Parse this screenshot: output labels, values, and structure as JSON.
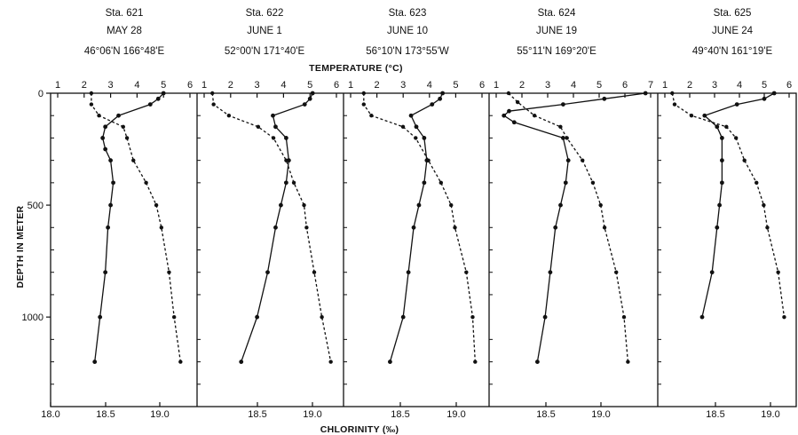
{
  "chart_data": {
    "type": "line",
    "x_axis_top_label": "TEMPERATURE (°C)",
    "x_axis_bottom_label": "CHLORINITY (‰)",
    "y_axis_label": "DEPTH IN METER",
    "y_ticks": [
      "0",
      "500",
      "1000"
    ],
    "ylim": [
      0,
      1400
    ],
    "y_inverted": true,
    "bottom_ticks": [
      "18.0",
      "18.5",
      "19.0",
      "18.5",
      "19.0",
      "18.5",
      "19.0",
      "18.5",
      "19.0",
      "18.5",
      "19.0"
    ],
    "panels": [
      {
        "station": "Sta. 621",
        "date": "MAY 28",
        "position": "46°06'N 166°48'E",
        "temp_ticks": [
          "1",
          "2",
          "3",
          "4",
          "5",
          "6"
        ],
        "temp_range": [
          1,
          6
        ],
        "chl_range": [
          18.0,
          19.15
        ],
        "temperature": [
          [
            5.0,
            0
          ],
          [
            4.8,
            25
          ],
          [
            4.5,
            50
          ],
          [
            3.3,
            100
          ],
          [
            2.8,
            150
          ],
          [
            2.7,
            200
          ],
          [
            2.8,
            250
          ],
          [
            3.0,
            300
          ],
          [
            3.1,
            400
          ],
          [
            3.0,
            500
          ],
          [
            2.9,
            600
          ],
          [
            2.8,
            800
          ],
          [
            2.6,
            1000
          ],
          [
            2.4,
            1200
          ]
        ],
        "chlorinity": [
          [
            18.32,
            0
          ],
          [
            18.32,
            50
          ],
          [
            18.38,
            100
          ],
          [
            18.57,
            150
          ],
          [
            18.6,
            200
          ],
          [
            18.65,
            300
          ],
          [
            18.75,
            400
          ],
          [
            18.83,
            500
          ],
          [
            18.87,
            600
          ],
          [
            18.93,
            800
          ],
          [
            18.97,
            1000
          ],
          [
            19.02,
            1200
          ]
        ]
      },
      {
        "station": "Sta. 622",
        "date": "JUNE 1",
        "position": "52°00'N 171°40'E",
        "temp_ticks": [
          "1",
          "2",
          "3",
          "4",
          "5",
          "6"
        ],
        "temp_range": [
          1,
          6
        ],
        "chl_range": [
          18.0,
          19.15
        ],
        "temperature": [
          [
            5.1,
            0
          ],
          [
            5.0,
            25
          ],
          [
            4.8,
            50
          ],
          [
            3.6,
            100
          ],
          [
            3.7,
            150
          ],
          [
            4.1,
            200
          ],
          [
            4.2,
            300
          ],
          [
            4.1,
            400
          ],
          [
            3.9,
            500
          ],
          [
            3.7,
            600
          ],
          [
            3.4,
            800
          ],
          [
            3.0,
            1000
          ],
          [
            2.4,
            1200
          ]
        ],
        "chlorinity": [
          [
            18.12,
            0
          ],
          [
            18.13,
            50
          ],
          [
            18.25,
            100
          ],
          [
            18.48,
            150
          ],
          [
            18.6,
            200
          ],
          [
            18.7,
            300
          ],
          [
            18.76,
            400
          ],
          [
            18.84,
            500
          ],
          [
            18.86,
            600
          ],
          [
            18.92,
            800
          ],
          [
            18.98,
            1000
          ],
          [
            19.05,
            1200
          ]
        ]
      },
      {
        "station": "Sta. 623",
        "date": "JUNE 10",
        "position": "56°10'N 173°55'W",
        "temp_ticks": [
          "1",
          "2",
          "3",
          "4",
          "5",
          "6"
        ],
        "temp_range": [
          1,
          6
        ],
        "chl_range": [
          18.0,
          19.15
        ],
        "temperature": [
          [
            4.5,
            0
          ],
          [
            4.4,
            25
          ],
          [
            4.1,
            50
          ],
          [
            3.3,
            100
          ],
          [
            3.5,
            150
          ],
          [
            3.8,
            200
          ],
          [
            3.9,
            300
          ],
          [
            3.8,
            400
          ],
          [
            3.6,
            500
          ],
          [
            3.4,
            600
          ],
          [
            3.2,
            800
          ],
          [
            3.0,
            1000
          ],
          [
            2.5,
            1200
          ]
        ],
        "chlorinity": [
          [
            18.16,
            0
          ],
          [
            18.16,
            50
          ],
          [
            18.22,
            100
          ],
          [
            18.47,
            150
          ],
          [
            18.57,
            200
          ],
          [
            18.67,
            300
          ],
          [
            18.77,
            400
          ],
          [
            18.85,
            500
          ],
          [
            18.88,
            600
          ],
          [
            18.97,
            800
          ],
          [
            19.02,
            1000
          ],
          [
            19.04,
            1200
          ]
        ]
      },
      {
        "station": "Sta. 624",
        "date": "JUNE 19",
        "position": "55°11'N 169°20'E",
        "temp_ticks": [
          "1",
          "2",
          "3",
          "4",
          "5",
          "6",
          "7"
        ],
        "temp_range": [
          1,
          7
        ],
        "chl_range": [
          18.0,
          19.3
        ],
        "temperature": [
          [
            6.8,
            0
          ],
          [
            5.2,
            25
          ],
          [
            3.6,
            50
          ],
          [
            1.5,
            80
          ],
          [
            1.3,
            100
          ],
          [
            1.7,
            130
          ],
          [
            3.6,
            200
          ],
          [
            3.8,
            300
          ],
          [
            3.7,
            400
          ],
          [
            3.5,
            500
          ],
          [
            3.3,
            600
          ],
          [
            3.1,
            800
          ],
          [
            2.9,
            1000
          ],
          [
            2.6,
            1200
          ]
        ],
        "chlorinity": [
          [
            18.15,
            0
          ],
          [
            18.22,
            40
          ],
          [
            18.35,
            100
          ],
          [
            18.55,
            150
          ],
          [
            18.6,
            200
          ],
          [
            18.72,
            300
          ],
          [
            18.8,
            400
          ],
          [
            18.86,
            500
          ],
          [
            18.89,
            600
          ],
          [
            18.98,
            800
          ],
          [
            19.04,
            1000
          ],
          [
            19.07,
            1200
          ]
        ]
      },
      {
        "station": "Sta. 625",
        "date": "JUNE 24",
        "position": "49°40'N 161°19'E",
        "temp_ticks": [
          "1",
          "2",
          "3",
          "4",
          "5",
          "6"
        ],
        "temp_range": [
          1,
          6
        ],
        "chl_range": [
          18.0,
          19.15
        ],
        "temperature": [
          [
            5.4,
            0
          ],
          [
            5.0,
            25
          ],
          [
            3.9,
            50
          ],
          [
            2.6,
            100
          ],
          [
            3.1,
            150
          ],
          [
            3.3,
            200
          ],
          [
            3.3,
            300
          ],
          [
            3.3,
            400
          ],
          [
            3.2,
            500
          ],
          [
            3.1,
            600
          ],
          [
            2.9,
            800
          ],
          [
            2.5,
            1000
          ]
        ],
        "chlorinity": [
          [
            18.12,
            0
          ],
          [
            18.14,
            50
          ],
          [
            18.28,
            100
          ],
          [
            18.57,
            150
          ],
          [
            18.65,
            200
          ],
          [
            18.72,
            300
          ],
          [
            18.82,
            400
          ],
          [
            18.88,
            500
          ],
          [
            18.91,
            600
          ],
          [
            19.0,
            800
          ],
          [
            19.05,
            1000
          ]
        ]
      }
    ]
  }
}
